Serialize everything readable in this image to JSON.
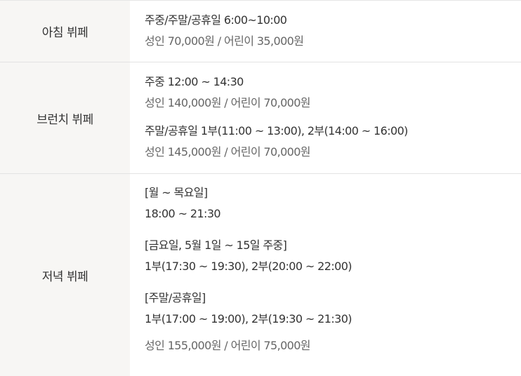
{
  "rows": [
    {
      "label": "아침 뷔페",
      "blocks": [
        {
          "lines": [
            "주중/주말/공휴일 6:00~10:00",
            "성인 70,000원 / 어린이 35,000원"
          ]
        }
      ]
    },
    {
      "label": "브런치 뷔페",
      "blocks": [
        {
          "lines": [
            "주중 12:00 ~ 14:30",
            "성인 140,000원 / 어린이 70,000원"
          ]
        },
        {
          "lines": [
            "주말/공휴일 1부(11:00 ~ 13:00), 2부(14:00 ~ 16:00)",
            "성인 145,000원 / 어린이 70,000원"
          ]
        }
      ]
    },
    {
      "label": "저녁 뷔페",
      "blocks": [
        {
          "lines": [
            "[월 ~ 목요일]",
            "18:00 ~ 21:30"
          ]
        },
        {
          "lines": [
            "[금요일, 5월 1일 ~ 15일 주중]",
            "1부(17:30 ~ 19:30), 2부(20:00 ~ 22:00)"
          ]
        },
        {
          "lines": [
            "[주말/공휴일]",
            "1부(17:00 ~ 19:00), 2부(19:30 ~ 21:30)"
          ]
        }
      ],
      "price": "성인 155,000원 / 어린이 75,000원"
    }
  ]
}
